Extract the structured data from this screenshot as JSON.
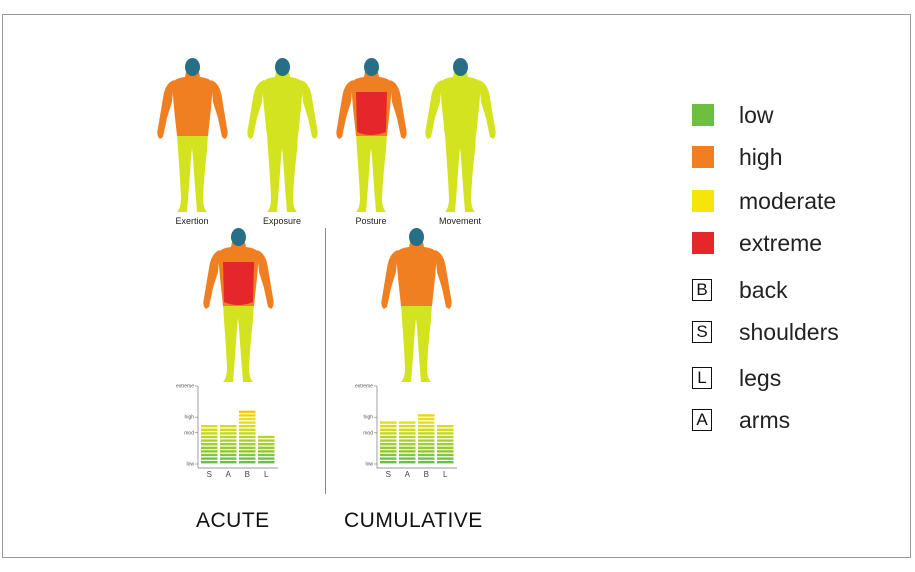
{
  "colors": {
    "low": "#6cbf3f",
    "high": "#f07f22",
    "moderate": "#f5e50a",
    "extreme": "#e5262a",
    "limb": "#d4e31f",
    "head": "#276e87"
  },
  "figures": [
    {
      "label": "Exertion",
      "torso": "high",
      "arms": "high"
    },
    {
      "label": "Exposure",
      "torso": "limb",
      "arms": "limb"
    },
    {
      "label": "Posture",
      "torso": "high",
      "arms": "high",
      "core": "extreme"
    },
    {
      "label": "Movement",
      "torso": "limb",
      "arms": "limb"
    },
    {
      "label": "",
      "torso": "high",
      "arms": "high",
      "core": "extreme"
    },
    {
      "label": "",
      "torso": "high",
      "arms": "high"
    }
  ],
  "bottom_labels": {
    "acute": "ACUTE",
    "cumulative": "CUMULATIVE"
  },
  "legend": [
    {
      "kind": "swatch",
      "color": "#6cbf3f",
      "text": "low"
    },
    {
      "kind": "swatch",
      "color": "#f07f22",
      "text": "high"
    },
    {
      "kind": "swatch",
      "color": "#f5e50a",
      "text": "moderate"
    },
    {
      "kind": "swatch",
      "color": "#e5262a",
      "text": "extreme"
    },
    {
      "kind": "letter",
      "letter": "B",
      "text": "back"
    },
    {
      "kind": "letter",
      "letter": "S",
      "text": "shoulders"
    },
    {
      "kind": "letter",
      "letter": "L",
      "text": "legs"
    },
    {
      "kind": "letter",
      "letter": "A",
      "text": "arms"
    }
  ],
  "chart_data": [
    {
      "type": "bar",
      "title": "ACUTE",
      "categories": [
        "S",
        "A",
        "B",
        "L"
      ],
      "values": [
        2.65,
        2.65,
        3.35,
        1.8
      ],
      "ytick_labels": [
        "low",
        "mod",
        "high",
        "extreme"
      ],
      "ytick_values": [
        0,
        2,
        3,
        5
      ],
      "ylim": [
        0,
        5
      ]
    },
    {
      "type": "bar",
      "title": "CUMULATIVE",
      "categories": [
        "S",
        "A",
        "B",
        "L"
      ],
      "values": [
        2.85,
        2.85,
        3.2,
        2.45
      ],
      "ytick_labels": [
        "low",
        "mod",
        "high",
        "extreme"
      ],
      "ytick_values": [
        0,
        2,
        3,
        5
      ],
      "ylim": [
        0,
        5
      ]
    }
  ]
}
